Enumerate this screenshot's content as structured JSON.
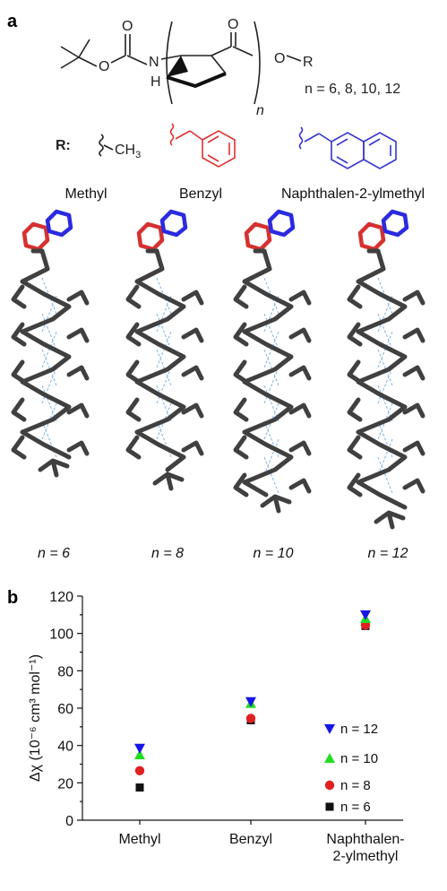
{
  "panel_a": {
    "letter": "a",
    "scheme": {
      "o1": "O",
      "o2": "O",
      "o3": "O",
      "o4": "O",
      "n": "N",
      "h": "H",
      "r": "R",
      "n_sub": "n",
      "n_values": "n = 6, 8, 10, 12",
      "r_label": "R:",
      "ch3": "CH",
      "ch3_sub": "3"
    },
    "substituents": [
      "Methyl",
      "Benzyl",
      "Naphthalen-2-ylmethyl"
    ],
    "structures": [
      "n = 6",
      "n = 8",
      "n = 10",
      "n = 12"
    ]
  },
  "panel_b": {
    "letter": "b",
    "ylabel": "Δχ (10⁻⁶ cm³ mol⁻¹)",
    "yticks": [
      "0",
      "20",
      "40",
      "60",
      "80",
      "100",
      "120"
    ],
    "legend_labels": [
      "n = 12",
      "n = 10",
      "n = 8",
      "n = 6"
    ]
  },
  "chart_data": {
    "type": "scatter",
    "categories": [
      "Methyl",
      "Benzyl",
      "Naphthalen-2-ylmethyl"
    ],
    "category_labels": [
      [
        "Methyl"
      ],
      [
        "Benzyl"
      ],
      [
        "Naphthalen-",
        "2-ylmethyl"
      ]
    ],
    "ylabel": "Δχ (10⁻⁶ cm³ mol⁻¹)",
    "ylim": [
      0,
      120
    ],
    "grid": false,
    "legend_position": "right",
    "series": [
      {
        "name": "n = 12",
        "marker": "triangle-down",
        "color": "#1515e6",
        "values": [
          38.5,
          63.5,
          110
        ]
      },
      {
        "name": "n = 10",
        "marker": "triangle-up",
        "color": "#22dd22",
        "values": [
          35,
          62.5,
          108
        ]
      },
      {
        "name": "n = 8",
        "marker": "circle",
        "color": "#e02020",
        "values": [
          26.5,
          54.5,
          104.5
        ]
      },
      {
        "name": "n = 6",
        "marker": "square",
        "color": "#111111",
        "values": [
          17.5,
          53.5,
          104
        ]
      }
    ]
  }
}
